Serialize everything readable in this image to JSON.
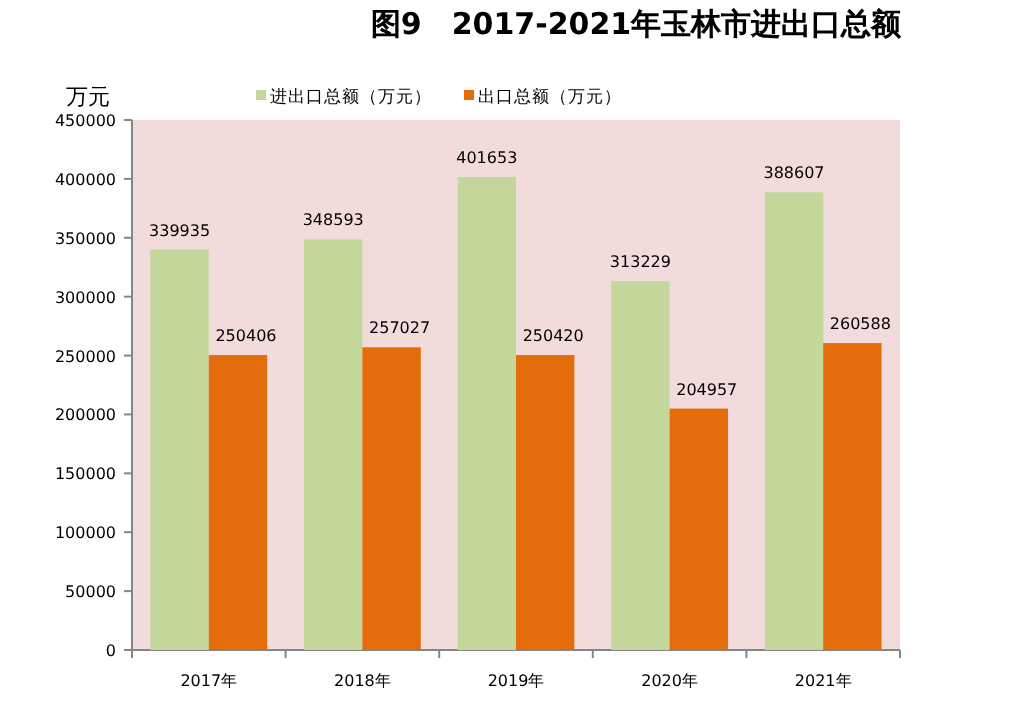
{
  "chart_data": {
    "type": "bar",
    "title": "图9　2017-2021年玉林市进出口总额",
    "ylabel": "万元",
    "categories": [
      "2017年",
      "2018年",
      "2019年",
      "2020年",
      "2021年"
    ],
    "series": [
      {
        "name": "进出口总额（万元）",
        "color": "#c4d79b",
        "values": [
          339935,
          348593,
          401653,
          313229,
          388607
        ]
      },
      {
        "name": "出口总额（万元）",
        "color": "#e46c0a",
        "values": [
          250406,
          257027,
          250420,
          204957,
          260588
        ]
      }
    ],
    "ylim": [
      0,
      450000
    ],
    "yticks": [
      0,
      50000,
      100000,
      150000,
      200000,
      250000,
      300000,
      350000,
      400000,
      450000
    ],
    "grid": false,
    "legend": "top",
    "data_labels": true
  }
}
